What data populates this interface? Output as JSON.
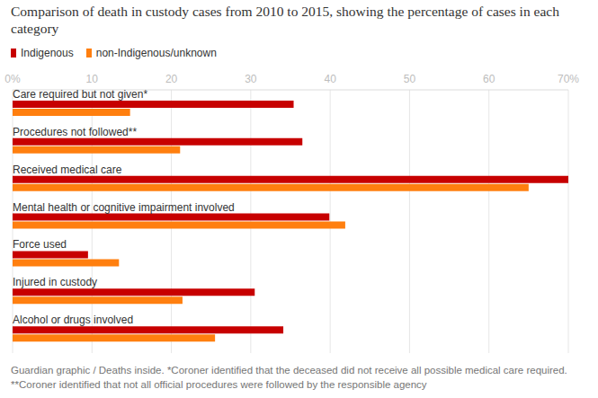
{
  "chart_data": {
    "type": "bar",
    "orientation": "horizontal",
    "title": "Comparison of death in custody cases from 2010 to 2015, showing the percentage of cases in each category",
    "caption": "Guardian graphic / Deaths inside. *Coroner identified that the deceased did not receive all possible medical care required. **Coroner identified that not all official procedures were followed by the responsible agency",
    "categories": [
      "Care required but not given*",
      "Procedures not followed**",
      "Received medical care",
      "Mental health or cognitive impairment involved",
      "Force used",
      "Injured in custody",
      "Alcohol or drugs involved"
    ],
    "series": [
      {
        "name": "Indigenous",
        "color": "#c70000",
        "values": [
          35.4,
          36.5,
          70,
          39.9,
          9.5,
          30.5,
          34.1
        ]
      },
      {
        "name": "non-Indigenous/unknown",
        "color": "#ff7f0f",
        "values": [
          14.8,
          21.1,
          65,
          41.9,
          13.4,
          21.4,
          25.5
        ]
      }
    ],
    "xlim": [
      0,
      70
    ],
    "xticks": [
      {
        "value": 0,
        "label": "0%"
      },
      10,
      20,
      30,
      40,
      50,
      60,
      {
        "value": 70,
        "label": "70%"
      }
    ],
    "grid": true,
    "legend": "top-left"
  }
}
